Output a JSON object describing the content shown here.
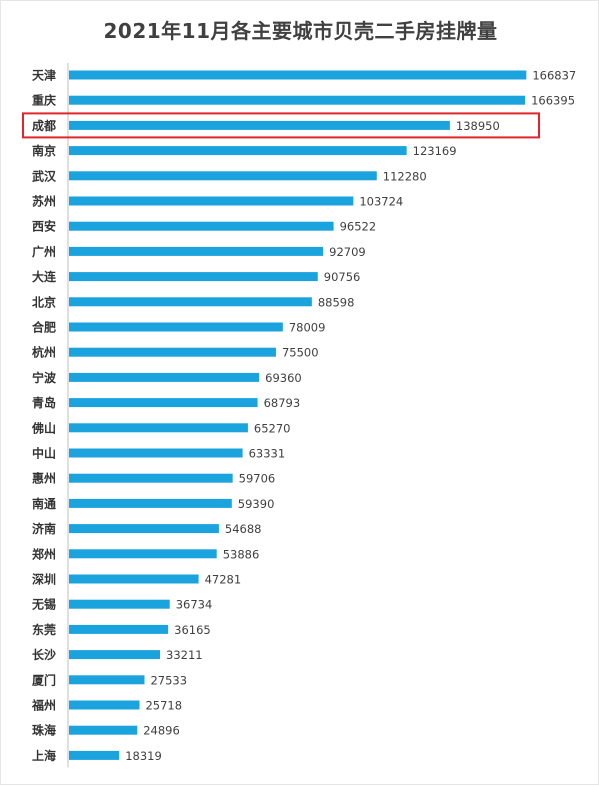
{
  "chart_data": {
    "type": "bar",
    "orientation": "horizontal",
    "title": "2021年11月各主要城市贝壳二手房挂牌量",
    "categories": [
      "天津",
      "重庆",
      "成都",
      "南京",
      "武汉",
      "苏州",
      "西安",
      "广州",
      "大连",
      "北京",
      "合肥",
      "杭州",
      "宁波",
      "青岛",
      "佛山",
      "中山",
      "惠州",
      "南通",
      "济南",
      "郑州",
      "深圳",
      "无锡",
      "东莞",
      "长沙",
      "厦门",
      "福州",
      "珠海",
      "上海"
    ],
    "values": [
      166837,
      166395,
      138950,
      123169,
      112280,
      103724,
      96522,
      92709,
      90756,
      88598,
      78009,
      75500,
      69360,
      68793,
      65270,
      63331,
      59706,
      59390,
      54688,
      53886,
      47281,
      36734,
      36165,
      33211,
      27533,
      25718,
      24896,
      18319
    ],
    "highlighted_category": "成都",
    "xlim": [
      0,
      170000
    ],
    "bar_color": "#1aa3dc",
    "highlight_color": "#e0252b",
    "axis_color": "#bfbfbf",
    "grid": false,
    "legend": "none",
    "data_labels": true
  }
}
